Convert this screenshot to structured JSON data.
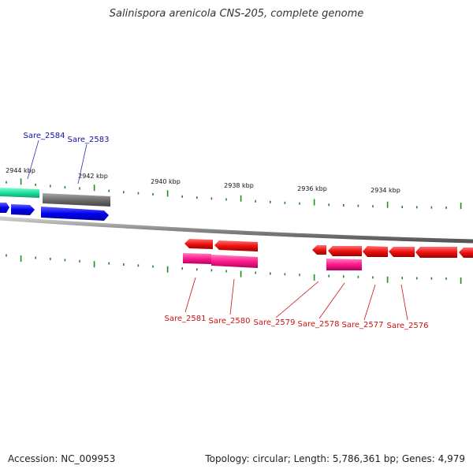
{
  "title": "Salinispora arenicola CNS-205, complete genome",
  "footer": {
    "accession": "Accession: NC_009953",
    "summary": "Topology: circular; Length: 5,786,361 bp; Genes: 4,979"
  },
  "scale_labels": [
    "2944 kbp",
    "2942 kbp",
    "2940 kbp",
    "2938 kbp",
    "2936 kbp",
    "2934 kbp"
  ],
  "forward_genes": [
    {
      "label": "Sare_2584",
      "color": "#1fe0a0"
    },
    {
      "label": "Sare_2583",
      "color": "#777777"
    }
  ],
  "reverse_genes": [
    {
      "label": "Sare_2581",
      "color": "#ee1111"
    },
    {
      "label": "Sare_2580",
      "color": "#ee1111"
    },
    {
      "label": "Sare_2579",
      "color": "#ee1111"
    },
    {
      "label": "Sare_2578",
      "color": "#ee1111"
    },
    {
      "label": "Sare_2577",
      "color": "#ee1111"
    },
    {
      "label": "Sare_2576",
      "color": "#ee1111"
    }
  ],
  "colors": {
    "forward_label": "#1111aa",
    "reverse_label": "#cc1111",
    "forward_cds": "#0000ee",
    "reverse_cds": "#ff1a8c",
    "tick": "#228822",
    "backbone": "#888888"
  }
}
